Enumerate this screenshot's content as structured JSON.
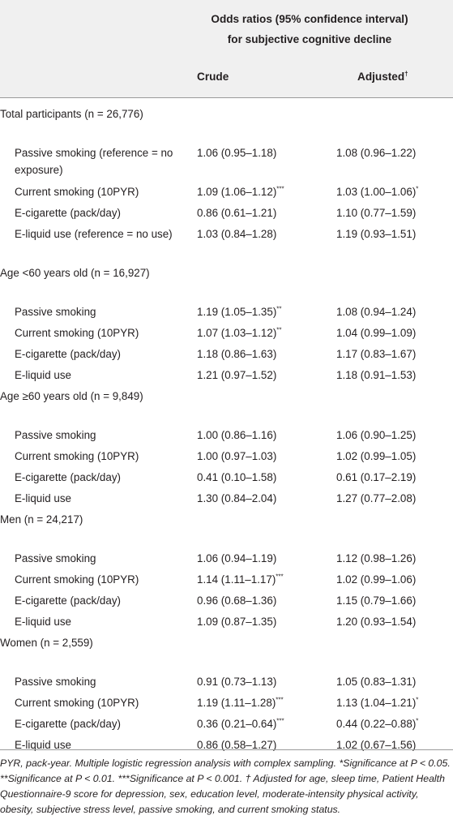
{
  "header": {
    "title_line1": "Odds ratios (95% confidence interval)",
    "title_line2": "for subjective cognitive decline",
    "col_crude": "Crude",
    "col_adjusted": "Adjusted",
    "col_adjusted_mark": "†"
  },
  "rows": [
    {
      "label": "Total participants (n = 26,776)",
      "group": true
    },
    {
      "label": "Passive smoking (reference = no exposure)",
      "crude": "1.06 (0.95–1.18)",
      "adjusted": "1.08 (0.96–1.22)"
    },
    {
      "label": "Current smoking (10PYR)",
      "crude": "1.09 (1.06–1.12)",
      "crude_sig": "***",
      "adjusted": "1.03 (1.00–1.06)",
      "adjusted_sig": "*"
    },
    {
      "label": "E-cigarette (pack/day)",
      "crude": "0.86 (0.61–1.21)",
      "adjusted": "1.10 (0.77–1.59)"
    },
    {
      "label": "E-liquid use (reference = no use)",
      "crude": "1.03 (0.84–1.28)",
      "adjusted": "1.19 (0.93–1.51)"
    },
    {
      "label": "Age <60 years old (n = 16,927)",
      "group": true
    },
    {
      "label": "Passive smoking",
      "crude": "1.19 (1.05–1.35)",
      "crude_sig": "**",
      "adjusted": "1.08 (0.94–1.24)"
    },
    {
      "label": "Current smoking (10PYR)",
      "crude": "1.07 (1.03–1.12)",
      "crude_sig": "**",
      "adjusted": "1.04 (0.99–1.09)"
    },
    {
      "label": "E-cigarette (pack/day)",
      "crude": "1.18 (0.86–1.63)",
      "adjusted": "1.17 (0.83–1.67)"
    },
    {
      "label": "E-liquid use",
      "crude": "1.21 (0.97–1.52)",
      "adjusted": "1.18 (0.91–1.53)"
    },
    {
      "label": "Age ≥60 years old (n = 9,849)",
      "group": true
    },
    {
      "label": "Passive smoking",
      "crude": "1.00 (0.86–1.16)",
      "adjusted": "1.06 (0.90–1.25)"
    },
    {
      "label": "Current smoking (10PYR)",
      "crude": "1.00 (0.97–1.03)",
      "adjusted": "1.02 (0.99–1.05)"
    },
    {
      "label": "E-cigarette (pack/day)",
      "crude": "0.41 (0.10–1.58)",
      "adjusted": "0.61 (0.17–2.19)"
    },
    {
      "label": "E-liquid use",
      "crude": "1.30 (0.84–2.04)",
      "adjusted": "1.27 (0.77–2.08)"
    },
    {
      "label": "Men (n = 24,217)",
      "group": true
    },
    {
      "label": "Passive smoking",
      "crude": "1.06 (0.94–1.19)",
      "adjusted": "1.12 (0.98–1.26)"
    },
    {
      "label": "Current smoking (10PYR)",
      "crude": "1.14 (1.11–1.17)",
      "crude_sig": "***",
      "adjusted": "1.02 (0.99–1.06)"
    },
    {
      "label": "E-cigarette (pack/day)",
      "crude": "0.96 (0.68–1.36)",
      "adjusted": "1.15 (0.79–1.66)"
    },
    {
      "label": "E-liquid use",
      "crude": "1.09 (0.87–1.35)",
      "adjusted": "1.20 (0.93–1.54)"
    },
    {
      "label": "Women (n = 2,559)",
      "group": true
    },
    {
      "label": "Passive smoking",
      "crude": "0.91 (0.73–1.13)",
      "adjusted": "1.05 (0.83–1.31)"
    },
    {
      "label": "Current smoking (10PYR)",
      "crude": "1.19 (1.11–1.28)",
      "crude_sig": "***",
      "adjusted": "1.13 (1.04–1.21)",
      "adjusted_sig": "*"
    },
    {
      "label": "E-cigarette (pack/day)",
      "crude": "0.36 (0.21–0.64)",
      "crude_sig": "***",
      "adjusted": "0.44 (0.22–0.88)",
      "adjusted_sig": "*"
    },
    {
      "label": "E-liquid use",
      "crude": "0.86 (0.58–1.27)",
      "adjusted": "1.02 (0.67–1.56)"
    }
  ],
  "footnote": "PYR, pack-year. Multiple logistic regression analysis with complex sampling. *Significance at P < 0.05. **Significance at P < 0.01. ***Significance at P < 0.001. † Adjusted for age, sleep time, Patient Health Questionnaire-9 score for depression, sex, education level, moderate-intensity physical activity, obesity, subjective stress level, passive smoking, and current smoking status."
}
